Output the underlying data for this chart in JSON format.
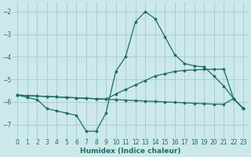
{
  "xlabel": "Humidex (Indice chaleur)",
  "bg_color": "#cce8ea",
  "grid_color": "#a0cccc",
  "line_color": "#1a6e64",
  "xlim": [
    -0.5,
    23.5
  ],
  "ylim": [
    -7.6,
    -1.6
  ],
  "yticks": [
    -7,
    -6,
    -5,
    -4,
    -3,
    -2
  ],
  "xticks": [
    0,
    1,
    2,
    3,
    4,
    5,
    6,
    7,
    8,
    9,
    10,
    11,
    12,
    13,
    14,
    15,
    16,
    17,
    18,
    19,
    20,
    21,
    22,
    23
  ],
  "line1_x": [
    0,
    1,
    2,
    3,
    4,
    5,
    6,
    7,
    8,
    9,
    10,
    11,
    12,
    13,
    14,
    15,
    16,
    17,
    18,
    19,
    20,
    21,
    22,
    23
  ],
  "line1_y": [
    -5.7,
    -5.8,
    -5.9,
    -6.3,
    -6.4,
    -6.5,
    -6.6,
    -7.3,
    -7.3,
    -6.5,
    -4.65,
    -4.0,
    -2.45,
    -2.0,
    -2.3,
    -3.1,
    -3.9,
    -4.3,
    -4.4,
    -4.45,
    -4.85,
    -5.3,
    -5.85,
    -6.3
  ],
  "line2_x": [
    0,
    1,
    2,
    3,
    4,
    5,
    6,
    7,
    8,
    9,
    10,
    11,
    12,
    13,
    14,
    15,
    16,
    17,
    18,
    19,
    20,
    21,
    22,
    23
  ],
  "line2_y": [
    -5.7,
    -5.72,
    -5.74,
    -5.76,
    -5.78,
    -5.8,
    -5.82,
    -5.84,
    -5.86,
    -5.88,
    -5.65,
    -5.45,
    -5.25,
    -5.05,
    -4.85,
    -4.75,
    -4.65,
    -4.6,
    -4.58,
    -4.56,
    -4.55,
    -4.55,
    -5.85,
    -6.3
  ],
  "line3_x": [
    0,
    1,
    2,
    3,
    4,
    5,
    6,
    7,
    8,
    9,
    10,
    11,
    12,
    13,
    14,
    15,
    16,
    17,
    18,
    19,
    20,
    21,
    22,
    23
  ],
  "line3_y": [
    -5.7,
    -5.72,
    -5.74,
    -5.76,
    -5.78,
    -5.8,
    -5.82,
    -5.84,
    -5.86,
    -5.88,
    -5.9,
    -5.92,
    -5.94,
    -5.96,
    -5.98,
    -6.0,
    -6.02,
    -6.04,
    -6.06,
    -6.08,
    -6.1,
    -6.1,
    -5.85,
    -6.3
  ]
}
